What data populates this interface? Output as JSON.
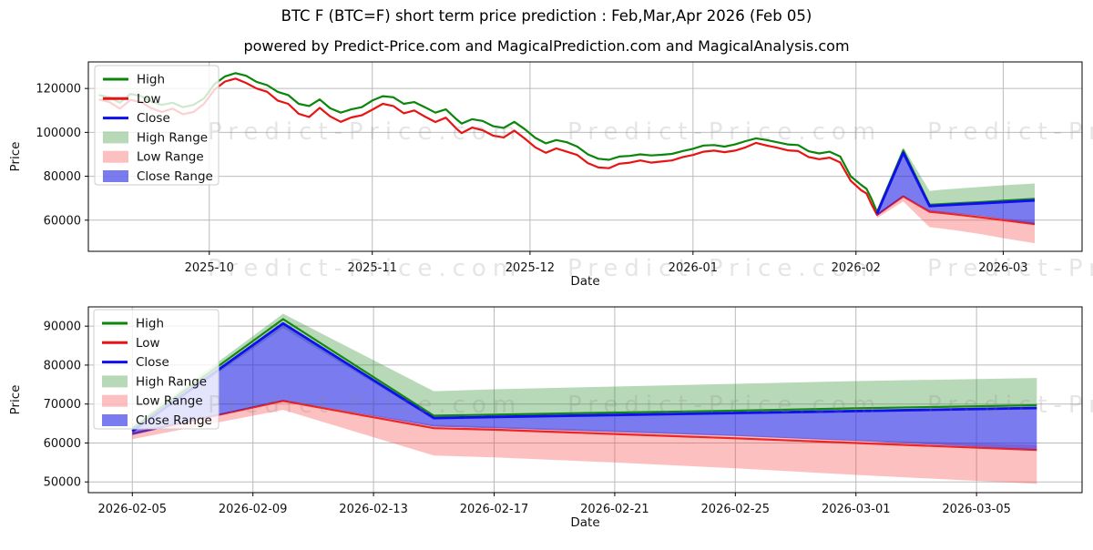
{
  "title": "BTC F (BTC=F) short term price prediction : Feb,Mar,Apr 2026 (Feb 05)",
  "subtitle": "powered by Predict-Price.com and MagicalPrediction.com and MagicalAnalysis.com",
  "watermark_text": "Predict-Price.com",
  "colors": {
    "high_line": "#0b860b",
    "low_line": "#e81414",
    "close_line": "#0e0eee",
    "high_range_fill": "rgba(40,140,40,0.33)",
    "low_range_fill": "rgba(250,70,70,0.34)",
    "close_range_fill": "rgba(35,35,230,0.60)",
    "grid": "#bbbbbb",
    "spine": "#000000",
    "tick_text": "#111111"
  },
  "legend": [
    {
      "label": "High",
      "swatch": "line",
      "color": "#0b860b"
    },
    {
      "label": "Low",
      "swatch": "line",
      "color": "#e81414"
    },
    {
      "label": "Close",
      "swatch": "line",
      "color": "#0e0eee"
    },
    {
      "label": "High Range",
      "swatch": "patch",
      "color": "rgba(40,140,40,0.33)"
    },
    {
      "label": "Low Range",
      "swatch": "patch",
      "color": "rgba(250,70,70,0.34)"
    },
    {
      "label": "Close Range",
      "swatch": "patch",
      "color": "rgba(35,35,230,0.60)"
    }
  ],
  "chart_data": [
    {
      "type": "line",
      "name": "history-and-forecast",
      "xlabel": "Date",
      "ylabel": "Price",
      "grid": true,
      "legend_position": "upper-left",
      "x_range": [
        "2025-09-08",
        "2026-03-16"
      ],
      "y_range": [
        45800,
        132100
      ],
      "yticks": [
        {
          "v": 60000,
          "label": "60000"
        },
        {
          "v": 80000,
          "label": "80000"
        },
        {
          "v": 100000,
          "label": "100000"
        },
        {
          "v": 120000,
          "label": "120000"
        }
      ],
      "xticks": [
        {
          "d": "2025-10-01",
          "label": "2025-10"
        },
        {
          "d": "2025-11-01",
          "label": "2025-11"
        },
        {
          "d": "2025-12-01",
          "label": "2025-12"
        },
        {
          "d": "2026-01-01",
          "label": "2026-01"
        },
        {
          "d": "2026-02-01",
          "label": "2026-02"
        },
        {
          "d": "2026-03-01",
          "label": "2026-03"
        }
      ],
      "history": {
        "dates": [
          "2025-09-10",
          "2025-09-12",
          "2025-09-14",
          "2025-09-16",
          "2025-09-18",
          "2025-09-20",
          "2025-09-22",
          "2025-09-24",
          "2025-09-26",
          "2025-09-28",
          "2025-09-30",
          "2025-10-02",
          "2025-10-04",
          "2025-10-06",
          "2025-10-08",
          "2025-10-10",
          "2025-10-12",
          "2025-10-14",
          "2025-10-16",
          "2025-10-18",
          "2025-10-20",
          "2025-10-22",
          "2025-10-24",
          "2025-10-26",
          "2025-10-28",
          "2025-10-30",
          "2025-11-01",
          "2025-11-03",
          "2025-11-05",
          "2025-11-07",
          "2025-11-09",
          "2025-11-11",
          "2025-11-13",
          "2025-11-15",
          "2025-11-17",
          "2025-11-18",
          "2025-11-20",
          "2025-11-22",
          "2025-11-24",
          "2025-11-26",
          "2025-11-28",
          "2025-11-30",
          "2025-12-02",
          "2025-12-04",
          "2025-12-06",
          "2025-12-08",
          "2025-12-10",
          "2025-12-12",
          "2025-12-14",
          "2025-12-16",
          "2025-12-18",
          "2025-12-20",
          "2025-12-22",
          "2025-12-24",
          "2025-12-26",
          "2025-12-28",
          "2025-12-30",
          "2026-01-01",
          "2026-01-03",
          "2026-01-05",
          "2026-01-07",
          "2026-01-09",
          "2026-01-11",
          "2026-01-13",
          "2026-01-15",
          "2026-01-17",
          "2026-01-19",
          "2026-01-21",
          "2026-01-23",
          "2026-01-25",
          "2026-01-27",
          "2026-01-29",
          "2026-01-31",
          "2026-02-02",
          "2026-02-03",
          "2026-02-04",
          "2026-02-05"
        ],
        "high": [
          117000,
          116000,
          113500,
          117500,
          116500,
          114000,
          112500,
          113500,
          111500,
          112500,
          115500,
          122000,
          125500,
          127000,
          125800,
          123000,
          121500,
          118500,
          117000,
          113000,
          112000,
          115000,
          111000,
          109000,
          110500,
          111500,
          114500,
          116500,
          116000,
          113000,
          113800,
          111500,
          109000,
          110500,
          106000,
          104000,
          106000,
          105200,
          102800,
          102000,
          104800,
          101500,
          97500,
          95000,
          96500,
          95500,
          93500,
          90000,
          88000,
          87500,
          89000,
          89300,
          90000,
          89500,
          89800,
          90200,
          91500,
          92500,
          94000,
          94200,
          93500,
          94500,
          96000,
          97300,
          96500,
          95500,
          94500,
          94200,
          91400,
          90400,
          91200,
          89000,
          80000,
          76000,
          74300,
          69500,
          63700
        ],
        "low": [
          115000,
          113800,
          110800,
          114800,
          113800,
          111000,
          109300,
          110800,
          108300,
          109300,
          113000,
          119500,
          123200,
          124500,
          122500,
          120000,
          118500,
          114500,
          113000,
          108500,
          107000,
          111200,
          107300,
          104800,
          106800,
          107800,
          110300,
          113000,
          112000,
          108700,
          110000,
          107200,
          104700,
          106700,
          101700,
          99700,
          102200,
          101000,
          98500,
          97700,
          100800,
          97200,
          93200,
          90700,
          92700,
          91200,
          89700,
          86000,
          84000,
          83700,
          85700,
          86200,
          87200,
          86200,
          86700,
          87200,
          88700,
          89700,
          91200,
          91700,
          91000,
          91700,
          93200,
          95200,
          94000,
          93000,
          91800,
          91500,
          88800,
          87800,
          88500,
          86300,
          77900,
          73600,
          72200,
          67000,
          62400
        ]
      },
      "prediction": {
        "dates": [
          "2026-02-05",
          "2026-02-10",
          "2026-02-15",
          "2026-02-17",
          "2026-02-21",
          "2026-02-25",
          "2026-03-01",
          "2026-03-07"
        ],
        "close": [
          63000,
          90700,
          66400,
          66700,
          67200,
          67700,
          68200,
          69000
        ],
        "high": [
          63700,
          91800,
          67000,
          67300,
          67800,
          68300,
          68900,
          69700
        ],
        "low": [
          62400,
          70800,
          63800,
          63400,
          62300,
          61200,
          60000,
          58200
        ],
        "high_range_upper": [
          64500,
          93200,
          73300,
          73800,
          74500,
          75200,
          75900,
          76700
        ],
        "high_range_lower": [
          62800,
          89500,
          66000,
          66300,
          66800,
          67300,
          67800,
          68600
        ],
        "close_range_lower": [
          62000,
          71000,
          64200,
          63800,
          62800,
          61800,
          60500,
          58300
        ],
        "low_range_upper": [
          62600,
          70800,
          64700,
          64200,
          63200,
          62100,
          60800,
          59500
        ],
        "low_range_lower": [
          61000,
          68500,
          56800,
          56300,
          55000,
          53500,
          51800,
          49500
        ]
      }
    },
    {
      "type": "line",
      "name": "forecast-detail",
      "xlabel": "Date",
      "ylabel": "Price",
      "grid": true,
      "legend_position": "upper-left",
      "x_range": [
        "2026-02-03T13:00",
        "2026-03-08T12:00"
      ],
      "y_range": [
        47250,
        94950
      ],
      "yticks": [
        {
          "v": 50000,
          "label": "50000"
        },
        {
          "v": 60000,
          "label": "60000"
        },
        {
          "v": 70000,
          "label": "70000"
        },
        {
          "v": 80000,
          "label": "80000"
        },
        {
          "v": 90000,
          "label": "90000"
        }
      ],
      "xticks": [
        {
          "d": "2026-02-05",
          "label": "2026-02-05"
        },
        {
          "d": "2026-02-09",
          "label": "2026-02-09"
        },
        {
          "d": "2026-02-13",
          "label": "2026-02-13"
        },
        {
          "d": "2026-02-17",
          "label": "2026-02-17"
        },
        {
          "d": "2026-02-21",
          "label": "2026-02-21"
        },
        {
          "d": "2026-02-25",
          "label": "2026-02-25"
        },
        {
          "d": "2026-03-01",
          "label": "2026-03-01"
        },
        {
          "d": "2026-03-05",
          "label": "2026-03-05"
        }
      ],
      "history": null,
      "prediction": {
        "dates": [
          "2026-02-05",
          "2026-02-10",
          "2026-02-15",
          "2026-02-17",
          "2026-02-21",
          "2026-02-25",
          "2026-03-01",
          "2026-03-07"
        ],
        "close": [
          63000,
          90700,
          66400,
          66700,
          67200,
          67700,
          68200,
          69000
        ],
        "high": [
          63700,
          91800,
          67000,
          67300,
          67800,
          68300,
          68900,
          69700
        ],
        "low": [
          62400,
          70800,
          63800,
          63400,
          62300,
          61200,
          60000,
          58200
        ],
        "high_range_upper": [
          64500,
          93200,
          73300,
          73800,
          74500,
          75200,
          75900,
          76700
        ],
        "high_range_lower": [
          62800,
          89500,
          66000,
          66300,
          66800,
          67300,
          67800,
          68600
        ],
        "close_range_lower": [
          62000,
          71000,
          64200,
          63800,
          62800,
          61800,
          60500,
          58300
        ],
        "low_range_upper": [
          62600,
          70800,
          64700,
          64200,
          63200,
          62100,
          60800,
          59500
        ],
        "low_range_lower": [
          61000,
          68500,
          56800,
          56300,
          55000,
          53500,
          51800,
          49500
        ]
      }
    }
  ]
}
